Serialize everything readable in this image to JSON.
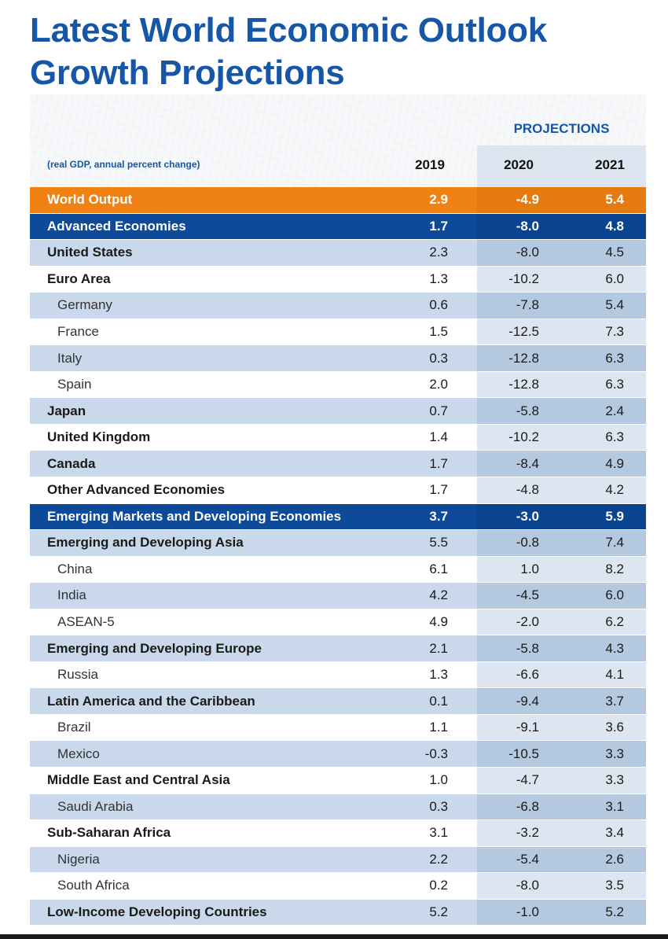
{
  "title_line1": "Latest World Economic Outlook",
  "title_line2": "Growth Projections",
  "projections_label": "PROJECTIONS",
  "units_label": "(real GDP, annual percent change)",
  "years": [
    "2019",
    "2020",
    "2021"
  ],
  "colors": {
    "title": "#1556a8",
    "world_output_row": "#ef8213",
    "group_row": "#0d4a9a",
    "light_row": "#c9d8ea",
    "projection_band": "#dde5f0"
  },
  "rows": [
    {
      "name": "World Output",
      "v2019": "2.9",
      "v2020": "-4.9",
      "v2021": "5.4",
      "style": "orange"
    },
    {
      "name": "Advanced Economies",
      "v2019": "1.7",
      "v2020": "-8.0",
      "v2021": "4.8",
      "style": "navy"
    },
    {
      "name": "United States",
      "v2019": "2.3",
      "v2020": "-8.0",
      "v2021": "4.5",
      "style": "light bold"
    },
    {
      "name": "Euro Area",
      "v2019": "1.3",
      "v2020": "-10.2",
      "v2021": "6.0",
      "style": "white bold"
    },
    {
      "name": "Germany",
      "v2019": "0.6",
      "v2020": "-7.8",
      "v2021": "5.4",
      "style": "light indent"
    },
    {
      "name": "France",
      "v2019": "1.5",
      "v2020": "-12.5",
      "v2021": "7.3",
      "style": "white indent"
    },
    {
      "name": "Italy",
      "v2019": "0.3",
      "v2020": "-12.8",
      "v2021": "6.3",
      "style": "light indent"
    },
    {
      "name": "Spain",
      "v2019": "2.0",
      "v2020": "-12.8",
      "v2021": "6.3",
      "style": "white indent"
    },
    {
      "name": "Japan",
      "v2019": "0.7",
      "v2020": "-5.8",
      "v2021": "2.4",
      "style": "light bold"
    },
    {
      "name": "United Kingdom",
      "v2019": "1.4",
      "v2020": "-10.2",
      "v2021": "6.3",
      "style": "white bold"
    },
    {
      "name": "Canada",
      "v2019": "1.7",
      "v2020": "-8.4",
      "v2021": "4.9",
      "style": "light bold"
    },
    {
      "name": "Other Advanced Economies",
      "v2019": "1.7",
      "v2020": "-4.8",
      "v2021": "4.2",
      "style": "white bold"
    },
    {
      "name": "Emerging Markets and Developing Economies",
      "v2019": "3.7",
      "v2020": "-3.0",
      "v2021": "5.9",
      "style": "navy"
    },
    {
      "name": "Emerging and Developing Asia",
      "v2019": "5.5",
      "v2020": "-0.8",
      "v2021": "7.4",
      "style": "light bold"
    },
    {
      "name": "China",
      "v2019": "6.1",
      "v2020": "1.0",
      "v2021": "8.2",
      "style": "white indent"
    },
    {
      "name": "India",
      "v2019": "4.2",
      "v2020": "-4.5",
      "v2021": "6.0",
      "style": "light indent"
    },
    {
      "name": "ASEAN-5",
      "v2019": "4.9",
      "v2020": "-2.0",
      "v2021": "6.2",
      "style": "white indent"
    },
    {
      "name": "Emerging and Developing Europe",
      "v2019": "2.1",
      "v2020": "-5.8",
      "v2021": "4.3",
      "style": "light bold"
    },
    {
      "name": "Russia",
      "v2019": "1.3",
      "v2020": "-6.6",
      "v2021": "4.1",
      "style": "white indent"
    },
    {
      "name": "Latin America and the Caribbean",
      "v2019": "0.1",
      "v2020": "-9.4",
      "v2021": "3.7",
      "style": "light bold"
    },
    {
      "name": "Brazil",
      "v2019": "1.1",
      "v2020": "-9.1",
      "v2021": "3.6",
      "style": "white indent"
    },
    {
      "name": "Mexico",
      "v2019": "-0.3",
      "v2020": "-10.5",
      "v2021": "3.3",
      "style": "light indent"
    },
    {
      "name": "Middle East and Central Asia",
      "v2019": "1.0",
      "v2020": "-4.7",
      "v2021": "3.3",
      "style": "white bold"
    },
    {
      "name": "Saudi Arabia",
      "v2019": "0.3",
      "v2020": "-6.8",
      "v2021": "3.1",
      "style": "light indent"
    },
    {
      "name": "Sub-Saharan Africa",
      "v2019": "3.1",
      "v2020": "-3.2",
      "v2021": "3.4",
      "style": "white bold"
    },
    {
      "name": "Nigeria",
      "v2019": "2.2",
      "v2020": "-5.4",
      "v2021": "2.6",
      "style": "light indent"
    },
    {
      "name": "South Africa",
      "v2019": "0.2",
      "v2020": "-8.0",
      "v2021": "3.5",
      "style": "white indent"
    },
    {
      "name": "Low-Income Developing Countries",
      "v2019": "5.2",
      "v2020": "-1.0",
      "v2021": "5.2",
      "style": "light bold"
    }
  ]
}
